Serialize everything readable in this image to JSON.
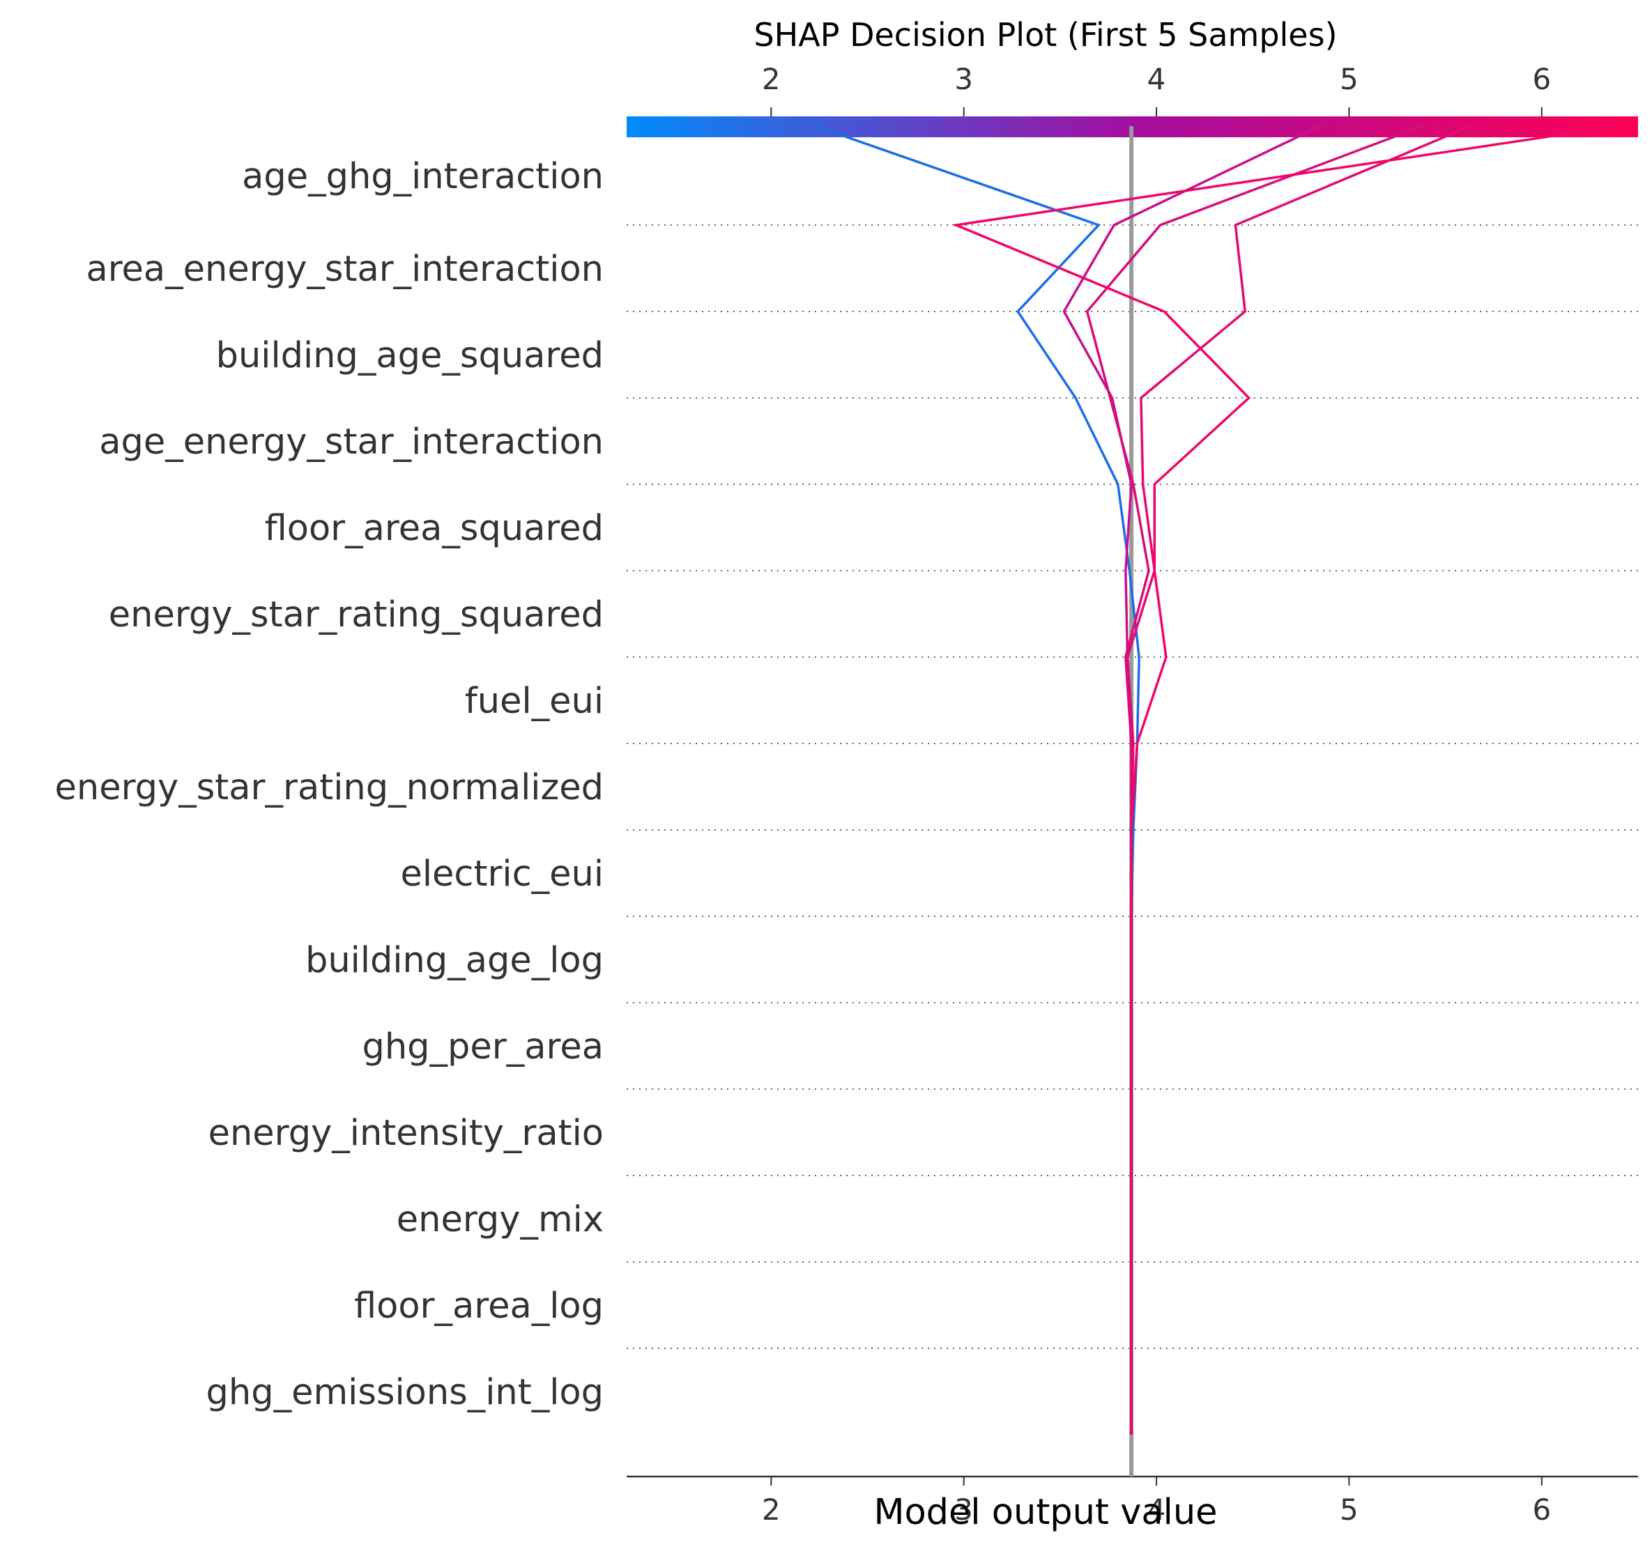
{
  "chart_data": {
    "type": "line",
    "title": "SHAP Decision Plot (First 5 Samples)",
    "xlabel": "Model output value",
    "ylabel": "",
    "xlim": [
      1.25,
      6.5
    ],
    "xticks": [
      "2",
      "3",
      "4",
      "5",
      "6"
    ],
    "xtick_values": [
      2,
      3,
      4,
      5,
      6
    ],
    "base_value": 3.87,
    "colorbar": {
      "range": [
        1.25,
        6.5
      ],
      "low_color": "#008bfb",
      "mid_color": "#a40ea0",
      "high_color": "#ff0052"
    },
    "features": [
      "age_ghg_interaction",
      "area_energy_star_interaction",
      "building_age_squared",
      "age_energy_star_interaction",
      "floor_area_squared",
      "energy_star_rating_squared",
      "fuel_eui",
      "energy_star_rating_normalized",
      "electric_eui",
      "building_age_log",
      "ghg_per_area",
      "energy_intensity_ratio",
      "energy_mix",
      "floor_area_log",
      "ghg_emissions_int_log"
    ],
    "series": [
      {
        "color": "#1a6ee8",
        "values": [
          2.23,
          3.7,
          3.28,
          3.58,
          3.8,
          3.86,
          3.91,
          3.9,
          3.88,
          3.87,
          3.87,
          3.87,
          3.87,
          3.87,
          3.87,
          3.87
        ]
      },
      {
        "color": "#c8108e",
        "values": [
          4.85,
          3.78,
          3.52,
          3.77,
          3.87,
          3.84,
          3.85,
          3.87,
          3.87,
          3.87,
          3.87,
          3.87,
          3.87,
          3.87,
          3.87,
          3.87
        ]
      },
      {
        "color": "#d80c7c",
        "values": [
          5.38,
          4.02,
          3.64,
          3.76,
          3.88,
          3.96,
          3.84,
          3.87,
          3.87,
          3.87,
          3.87,
          3.87,
          3.87,
          3.87,
          3.87,
          3.87
        ]
      },
      {
        "color": "#e20a74",
        "values": [
          5.63,
          4.41,
          4.46,
          3.92,
          3.93,
          3.99,
          3.85,
          3.88,
          3.87,
          3.87,
          3.87,
          3.87,
          3.87,
          3.87,
          3.87,
          3.87
        ]
      },
      {
        "color": "#f0066a",
        "values": [
          6.4,
          2.96,
          4.04,
          4.48,
          3.99,
          3.99,
          4.05,
          3.9,
          3.87,
          3.87,
          3.87,
          3.87,
          3.87,
          3.87,
          3.87,
          3.87
        ]
      }
    ]
  }
}
